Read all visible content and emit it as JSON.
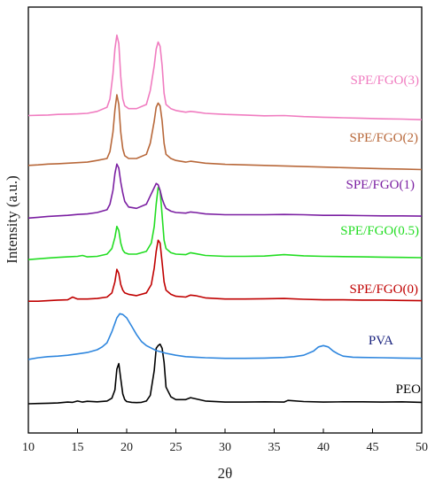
{
  "chart_data": {
    "type": "line",
    "xlabel": "2θ",
    "ylabel": "Intensity (a.u.)",
    "xlim": [
      10,
      50
    ],
    "xticks": [
      "10",
      "15",
      "20",
      "25",
      "30",
      "35",
      "40",
      "45",
      "50"
    ],
    "grid": false,
    "legend": "inline labels beside each trace",
    "series": [
      {
        "name": "PEO",
        "color": "#000000",
        "baseline": 0.0,
        "x": [
          10,
          11,
          12,
          13,
          14,
          14.5,
          15,
          15.5,
          16,
          17,
          18,
          18.5,
          18.8,
          19.0,
          19.2,
          19.4,
          19.6,
          19.8,
          20.0,
          20.5,
          21,
          21.5,
          22,
          22.4,
          22.8,
          23.0,
          23.2,
          23.4,
          23.6,
          23.8,
          24.0,
          24.5,
          25,
          26,
          26.5,
          27,
          28,
          30,
          32,
          34,
          36,
          36.4,
          38,
          40,
          42,
          44,
          46,
          48,
          50
        ],
        "y": [
          0.0,
          0.1,
          0.2,
          0.3,
          0.6,
          0.5,
          1.0,
          0.6,
          0.9,
          0.7,
          1.0,
          2.0,
          5.0,
          12.5,
          14.5,
          9.0,
          3.5,
          1.5,
          0.8,
          0.5,
          0.4,
          0.5,
          1.0,
          3.0,
          12.0,
          20.0,
          21.0,
          21.5,
          20.0,
          15.0,
          6.0,
          2.5,
          1.5,
          1.5,
          2.2,
          1.8,
          1.0,
          0.6,
          0.6,
          0.7,
          0.6,
          1.2,
          0.8,
          0.6,
          0.7,
          0.7,
          0.6,
          0.7,
          0.5
        ]
      },
      {
        "name": "PVA",
        "color": "#2e86de",
        "baseline": 16.0,
        "x": [
          10,
          11,
          12,
          13,
          14,
          15,
          16,
          17,
          17.5,
          18,
          18.5,
          19,
          19.3,
          19.6,
          20,
          20.5,
          21,
          21.5,
          22,
          23,
          24,
          25,
          26,
          27,
          28,
          30,
          32,
          34,
          36,
          37,
          38,
          39,
          39.5,
          40,
          40.5,
          41,
          41.5,
          42,
          43,
          44,
          46,
          48,
          50
        ],
        "y": [
          0.0,
          0.6,
          1.0,
          1.2,
          1.5,
          2.0,
          2.5,
          3.5,
          4.5,
          6.0,
          10.0,
          15.0,
          16.5,
          16.2,
          15.0,
          12.0,
          9.0,
          6.5,
          5.0,
          3.2,
          2.2,
          1.5,
          1.0,
          0.8,
          0.6,
          0.4,
          0.4,
          0.5,
          0.7,
          1.0,
          1.5,
          3.0,
          4.5,
          5.0,
          4.5,
          3.0,
          2.0,
          1.2,
          0.8,
          0.7,
          0.6,
          0.5,
          0.4
        ]
      },
      {
        "name": "SPE/FGO(0)",
        "color": "#c00000",
        "baseline": 37.0,
        "x": [
          10,
          11,
          12,
          13,
          14,
          14.5,
          15,
          16,
          17,
          18,
          18.5,
          18.8,
          19.0,
          19.2,
          19.4,
          19.6,
          19.8,
          20.2,
          21,
          22,
          22.5,
          22.8,
          23.0,
          23.2,
          23.4,
          23.6,
          23.8,
          24.0,
          24.5,
          25,
          26,
          26.5,
          27,
          28,
          30,
          32,
          34,
          36,
          38,
          40,
          42,
          44,
          46,
          48,
          50
        ],
        "y": [
          0.0,
          0.0,
          0.2,
          0.4,
          0.5,
          1.5,
          0.8,
          0.8,
          1.0,
          1.5,
          3.0,
          7.0,
          11.5,
          10.0,
          6.0,
          4.0,
          3.0,
          2.5,
          2.0,
          3.0,
          6.0,
          12.0,
          18.0,
          22.0,
          21.0,
          14.0,
          7.0,
          4.0,
          2.5,
          1.8,
          1.5,
          2.2,
          2.0,
          1.2,
          0.8,
          0.8,
          0.9,
          1.0,
          0.7,
          0.5,
          0.5,
          0.4,
          0.4,
          0.3,
          0.2
        ]
      },
      {
        "name": "SPE/FGO(0.5)",
        "color": "#22dd22",
        "baseline": 52.0,
        "x": [
          10,
          11,
          12,
          13,
          14,
          15,
          15.5,
          16,
          17,
          18,
          18.5,
          18.8,
          19.0,
          19.2,
          19.4,
          19.6,
          19.8,
          20.2,
          21,
          22,
          22.5,
          22.8,
          23.0,
          23.2,
          23.4,
          23.6,
          23.8,
          24.0,
          24.5,
          25,
          26,
          26.5,
          27,
          28,
          30,
          32,
          34,
          36,
          38,
          40,
          42,
          44,
          46,
          48,
          50
        ],
        "y": [
          0.0,
          0.3,
          0.6,
          0.8,
          1.0,
          1.2,
          1.5,
          1.0,
          1.2,
          2.0,
          4.0,
          8.0,
          12.0,
          10.5,
          6.0,
          3.5,
          2.5,
          2.0,
          2.0,
          3.0,
          6.0,
          12.0,
          20.0,
          26.0,
          25.0,
          16.0,
          7.0,
          4.0,
          2.5,
          2.0,
          1.8,
          2.5,
          2.2,
          1.5,
          1.2,
          1.2,
          1.3,
          1.8,
          1.4,
          1.2,
          1.1,
          1.0,
          0.9,
          0.8,
          0.7
        ]
      },
      {
        "name": "SPE/FGO(1)",
        "color": "#7b1fa2",
        "baseline": 67.0,
        "x": [
          10,
          11,
          12,
          13,
          14,
          15,
          16,
          17,
          18,
          18.3,
          18.6,
          18.8,
          19.0,
          19.2,
          19.4,
          19.6,
          19.8,
          20.2,
          21,
          22,
          22.4,
          22.8,
          23.0,
          23.2,
          23.4,
          23.6,
          23.8,
          24.0,
          24.5,
          25,
          26,
          26.5,
          27,
          28,
          30,
          32,
          34,
          36,
          38,
          40,
          42,
          44,
          46,
          48,
          50
        ],
        "y": [
          0.0,
          0.3,
          0.6,
          0.8,
          1.0,
          1.3,
          1.5,
          2.0,
          3.0,
          5.0,
          10.0,
          16.0,
          19.5,
          18.0,
          13.0,
          9.0,
          6.0,
          4.0,
          3.5,
          5.0,
          8.0,
          11.0,
          12.5,
          12.0,
          10.0,
          7.0,
          5.0,
          3.5,
          2.5,
          2.0,
          1.8,
          2.2,
          2.0,
          1.5,
          1.2,
          1.2,
          1.2,
          1.3,
          1.2,
          1.0,
          1.0,
          0.9,
          0.8,
          0.8,
          0.7
        ]
      },
      {
        "name": "SPE/FGO(2)",
        "color": "#b8683a",
        "baseline": 86.0,
        "x": [
          10,
          11,
          12,
          13,
          14,
          15,
          16,
          17,
          18,
          18.3,
          18.6,
          18.8,
          19.0,
          19.2,
          19.4,
          19.6,
          19.8,
          20.2,
          21,
          22,
          22.4,
          22.8,
          23.0,
          23.2,
          23.4,
          23.6,
          23.8,
          24.0,
          24.5,
          25,
          26,
          26.5,
          27,
          28,
          30,
          32,
          34,
          36,
          38,
          40,
          42,
          44,
          46,
          48,
          50
        ],
        "y": [
          0.0,
          0.2,
          0.5,
          0.6,
          0.8,
          1.0,
          1.2,
          1.8,
          2.5,
          5.0,
          12.0,
          20.0,
          25.5,
          22.0,
          12.0,
          6.0,
          3.5,
          2.5,
          2.5,
          4.0,
          8.0,
          16.0,
          21.0,
          22.5,
          21.5,
          16.0,
          8.0,
          4.0,
          2.5,
          1.8,
          1.2,
          1.5,
          1.3,
          0.8,
          0.4,
          0.2,
          0.0,
          -0.2,
          -0.4,
          -0.6,
          -0.8,
          -1.0,
          -1.2,
          -1.3,
          -1.5
        ]
      },
      {
        "name": "SPE/FGO(3)",
        "color": "#f07cc0",
        "baseline": 104.0,
        "x": [
          10,
          11,
          12,
          13,
          14,
          15,
          16,
          17,
          18,
          18.3,
          18.6,
          18.8,
          19.0,
          19.2,
          19.4,
          19.6,
          19.8,
          20.2,
          21,
          22,
          22.4,
          22.8,
          23.0,
          23.2,
          23.4,
          23.6,
          23.8,
          24.0,
          24.5,
          25,
          26,
          26.5,
          27,
          28,
          30,
          32,
          34,
          36,
          38,
          40,
          42,
          44,
          46,
          48,
          50
        ],
        "y": [
          0.0,
          0.1,
          0.2,
          0.4,
          0.5,
          0.6,
          0.8,
          1.5,
          3.0,
          6.0,
          15.0,
          24.0,
          29.0,
          26.0,
          14.0,
          6.0,
          3.5,
          2.5,
          2.5,
          4.0,
          9.0,
          18.0,
          24.0,
          26.5,
          25.0,
          18.0,
          8.0,
          4.0,
          2.5,
          1.8,
          1.2,
          1.5,
          1.3,
          0.8,
          0.4,
          0.2,
          -0.1,
          0.0,
          -0.4,
          -0.6,
          -0.8,
          -1.0,
          -1.2,
          -1.3,
          -1.5
        ]
      }
    ]
  }
}
